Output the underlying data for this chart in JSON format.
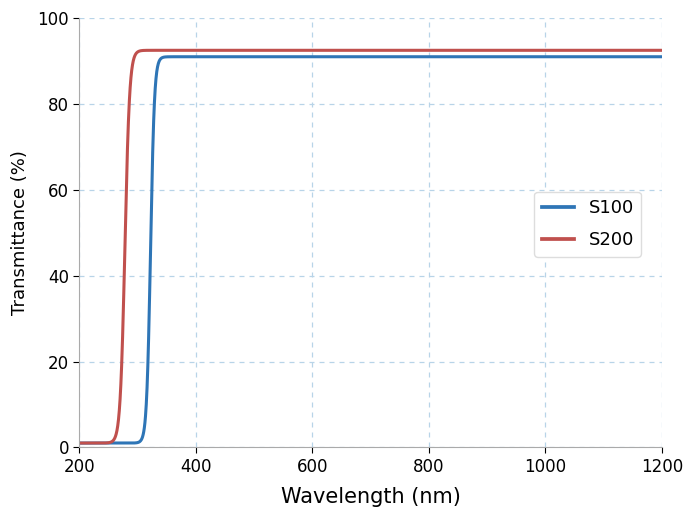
{
  "title": "",
  "xlabel": "Wavelength (nm)",
  "ylabel": "Transmittance (%)",
  "xlim": [
    200,
    1200
  ],
  "ylim": [
    0,
    100
  ],
  "xticks": [
    200,
    400,
    600,
    800,
    1000,
    1200
  ],
  "yticks": [
    0,
    20,
    40,
    60,
    80,
    100
  ],
  "grid_color": "#b8d4e8",
  "background_color": "#ffffff",
  "line_S100_color": "#2e75b6",
  "line_S200_color": "#c0504d",
  "line_width": 2.2,
  "legend_labels": [
    "S100",
    "S200"
  ],
  "xlabel_fontsize": 15,
  "ylabel_fontsize": 13,
  "tick_fontsize": 12,
  "legend_fontsize": 13,
  "S100_params": {
    "cutoff": 322,
    "steepness": 0.3,
    "max_T": 91.0,
    "min_T": 1.0
  },
  "S200_params": {
    "cutoff": 278,
    "steepness": 0.25,
    "max_T": 92.5,
    "min_T": 1.0
  }
}
